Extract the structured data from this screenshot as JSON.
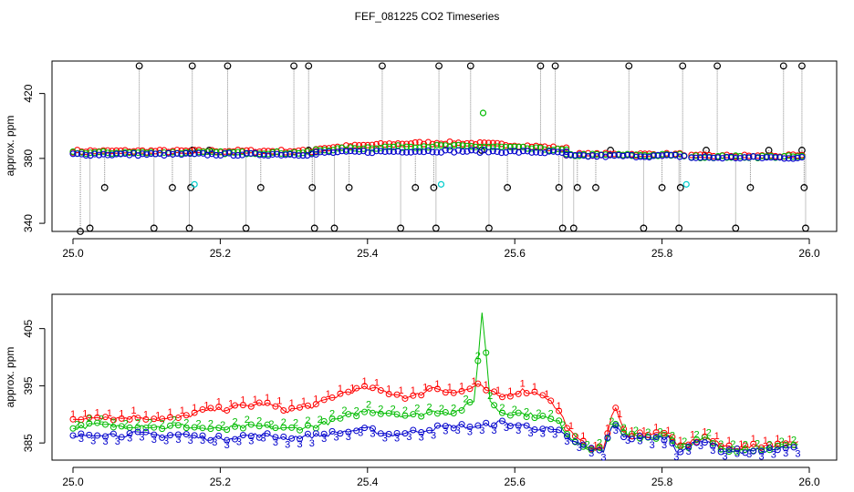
{
  "chart_data": [
    {
      "type": "scatter",
      "title": "FEF_081225  CO2 Timeseries",
      "xlabel": "",
      "ylabel": "approx. ppm",
      "xlim": [
        25.0,
        26.0
      ],
      "ylim": [
        335,
        440
      ],
      "x_ticks": [
        "25.0",
        "25.2",
        "25.4",
        "25.6",
        "25.8",
        "26.0"
      ],
      "y_ticks": [
        "340",
        "380",
        "420"
      ],
      "colors": {
        "series_1": "#ff0000",
        "series_2": "#00bb00",
        "series_3": "#0000cc",
        "outlier": "#000000",
        "flag": "#00cccc",
        "connector": "#888888"
      },
      "series": [
        {
          "name": "1",
          "color": "#ff0000",
          "segments": [
            {
              "x0": 25.0,
              "x1": 25.33,
              "base": 384.5
            },
            {
              "x0": 25.33,
              "x1": 25.67,
              "base": 386.0,
              "bump": 3.5
            },
            {
              "x0": 25.67,
              "x1": 25.83,
              "base": 382.5
            },
            {
              "x0": 25.84,
              "x1": 25.99,
              "base": 381.5
            }
          ]
        },
        {
          "name": "2",
          "color": "#00bb00",
          "segments": [
            {
              "x0": 25.0,
              "x1": 25.33,
              "base": 383.5
            },
            {
              "x0": 25.33,
              "x1": 25.67,
              "base": 385.0,
              "bump": 2.5
            },
            {
              "x0": 25.67,
              "x1": 25.83,
              "base": 382.0
            },
            {
              "x0": 25.84,
              "x1": 25.99,
              "base": 381.0
            }
          ]
        },
        {
          "name": "3",
          "color": "#0000cc",
          "segments": [
            {
              "x0": 25.0,
              "x1": 25.33,
              "base": 382.5
            },
            {
              "x0": 25.33,
              "x1": 25.67,
              "base": 383.5,
              "bump": 1.0
            },
            {
              "x0": 25.67,
              "x1": 25.83,
              "base": 381.5
            },
            {
              "x0": 25.84,
              "x1": 25.99,
              "base": 380.5
            }
          ]
        }
      ],
      "outliers": [
        {
          "x": 25.01,
          "y": 335
        },
        {
          "x": 25.023,
          "y": 337
        },
        {
          "x": 25.043,
          "y": 362
        },
        {
          "x": 25.09,
          "y": 437
        },
        {
          "x": 25.11,
          "y": 337
        },
        {
          "x": 25.135,
          "y": 362
        },
        {
          "x": 25.158,
          "y": 337
        },
        {
          "x": 25.16,
          "y": 362
        },
        {
          "x": 25.162,
          "y": 437
        },
        {
          "x": 25.21,
          "y": 437
        },
        {
          "x": 25.235,
          "y": 337
        },
        {
          "x": 25.255,
          "y": 362
        },
        {
          "x": 25.3,
          "y": 437
        },
        {
          "x": 25.32,
          "y": 437
        },
        {
          "x": 25.325,
          "y": 362
        },
        {
          "x": 25.328,
          "y": 337
        },
        {
          "x": 25.355,
          "y": 337
        },
        {
          "x": 25.375,
          "y": 362
        },
        {
          "x": 25.42,
          "y": 437
        },
        {
          "x": 25.445,
          "y": 337
        },
        {
          "x": 25.465,
          "y": 362
        },
        {
          "x": 25.49,
          "y": 362
        },
        {
          "x": 25.493,
          "y": 337
        },
        {
          "x": 25.497,
          "y": 437
        },
        {
          "x": 25.54,
          "y": 437
        },
        {
          "x": 25.565,
          "y": 337
        },
        {
          "x": 25.59,
          "y": 362
        },
        {
          "x": 25.635,
          "y": 437
        },
        {
          "x": 25.655,
          "y": 437
        },
        {
          "x": 25.66,
          "y": 362
        },
        {
          "x": 25.665,
          "y": 337
        },
        {
          "x": 25.68,
          "y": 337
        },
        {
          "x": 25.685,
          "y": 362
        },
        {
          "x": 25.71,
          "y": 362
        },
        {
          "x": 25.755,
          "y": 437
        },
        {
          "x": 25.775,
          "y": 337
        },
        {
          "x": 25.8,
          "y": 362
        },
        {
          "x": 25.823,
          "y": 337
        },
        {
          "x": 25.825,
          "y": 362
        },
        {
          "x": 25.828,
          "y": 437
        },
        {
          "x": 25.875,
          "y": 437
        },
        {
          "x": 25.9,
          "y": 337
        },
        {
          "x": 25.92,
          "y": 362
        },
        {
          "x": 25.965,
          "y": 437
        },
        {
          "x": 25.99,
          "y": 437
        },
        {
          "x": 25.993,
          "y": 362
        },
        {
          "x": 25.995,
          "y": 337
        },
        {
          "x": 25.162,
          "y": 385
        },
        {
          "x": 25.185,
          "y": 385
        },
        {
          "x": 25.32,
          "y": 385
        },
        {
          "x": 25.555,
          "y": 385
        },
        {
          "x": 25.73,
          "y": 385
        },
        {
          "x": 25.86,
          "y": 385
        },
        {
          "x": 25.945,
          "y": 385
        },
        {
          "x": 25.99,
          "y": 385
        }
      ],
      "flags": [
        {
          "x": 25.165,
          "y": 364,
          "color": "#00cccc"
        },
        {
          "x": 25.5,
          "y": 364,
          "color": "#00cccc"
        },
        {
          "x": 25.833,
          "y": 364,
          "color": "#00cccc"
        },
        {
          "x": 25.557,
          "y": 408,
          "color": "#00bb00"
        }
      ]
    },
    {
      "type": "line",
      "title": "",
      "xlabel": "",
      "ylabel": "approx. ppm",
      "xlim": [
        25.0,
        26.0
      ],
      "ylim": [
        382.0,
        411.0
      ],
      "x_ticks": [
        "25.0",
        "25.2",
        "25.4",
        "25.6",
        "25.8",
        "26.0"
      ],
      "y_ticks": [
        "385",
        "395",
        "405"
      ],
      "series": [
        {
          "name": "1",
          "color": "#ff0000",
          "label": "1",
          "points": [
            [
              25.0,
              388.8
            ],
            [
              25.03,
              389.8
            ],
            [
              25.06,
              389.3
            ],
            [
              25.09,
              389.6
            ],
            [
              25.12,
              389.1
            ],
            [
              25.15,
              389.5
            ],
            [
              25.17,
              390.4
            ],
            [
              25.2,
              390.9
            ],
            [
              25.23,
              391.4
            ],
            [
              25.26,
              391.9
            ],
            [
              25.29,
              390.7
            ],
            [
              25.33,
              391.6
            ],
            [
              25.37,
              393.9
            ],
            [
              25.4,
              394.6
            ],
            [
              25.43,
              393.8
            ],
            [
              25.46,
              392.9
            ],
            [
              25.49,
              394.8
            ],
            [
              25.52,
              393.7
            ],
            [
              25.55,
              395.0
            ],
            [
              25.58,
              393.0
            ],
            [
              25.61,
              394.2
            ],
            [
              25.64,
              393.5
            ],
            [
              25.66,
              390.5
            ],
            [
              25.68,
              386.0
            ],
            [
              25.7,
              384.4
            ],
            [
              25.72,
              383.8
            ],
            [
              25.735,
              391.5
            ],
            [
              25.75,
              386.5
            ],
            [
              25.78,
              386.6
            ],
            [
              25.81,
              386.6
            ],
            [
              25.82,
              384.2
            ],
            [
              25.84,
              385.2
            ],
            [
              25.86,
              386.0
            ],
            [
              25.88,
              384.5
            ],
            [
              25.91,
              384.2
            ],
            [
              25.94,
              384.6
            ],
            [
              25.97,
              385.0
            ],
            [
              25.99,
              385.2
            ]
          ]
        },
        {
          "name": "2",
          "color": "#00bb00",
          "label": "2",
          "points": [
            [
              25.0,
              387.6
            ],
            [
              25.03,
              388.2
            ],
            [
              25.06,
              387.9
            ],
            [
              25.09,
              388.1
            ],
            [
              25.12,
              387.7
            ],
            [
              25.15,
              388.0
            ],
            [
              25.17,
              387.6
            ],
            [
              25.2,
              387.3
            ],
            [
              25.23,
              387.8
            ],
            [
              25.26,
              387.9
            ],
            [
              25.29,
              387.4
            ],
            [
              25.33,
              388.0
            ],
            [
              25.37,
              389.5
            ],
            [
              25.4,
              390.7
            ],
            [
              25.43,
              390.3
            ],
            [
              25.46,
              389.7
            ],
            [
              25.49,
              390.5
            ],
            [
              25.52,
              390.4
            ],
            [
              25.545,
              392.2
            ],
            [
              25.556,
              408.6
            ],
            [
              25.566,
              392.6
            ],
            [
              25.58,
              390.4
            ],
            [
              25.61,
              390.1
            ],
            [
              25.64,
              389.5
            ],
            [
              25.66,
              388.5
            ],
            [
              25.68,
              385.4
            ],
            [
              25.7,
              384.2
            ],
            [
              25.72,
              383.6
            ],
            [
              25.735,
              389.0
            ],
            [
              25.75,
              386.3
            ],
            [
              25.78,
              386.0
            ],
            [
              25.81,
              386.2
            ],
            [
              25.82,
              383.8
            ],
            [
              25.84,
              384.8
            ],
            [
              25.86,
              385.9
            ],
            [
              25.88,
              384.0
            ],
            [
              25.91,
              383.8
            ],
            [
              25.94,
              384.1
            ],
            [
              25.97,
              384.4
            ],
            [
              25.99,
              384.6
            ]
          ]
        },
        {
          "name": "3",
          "color": "#0000cc",
          "label": "3",
          "points": [
            [
              25.0,
              386.0
            ],
            [
              25.03,
              386.7
            ],
            [
              25.06,
              386.4
            ],
            [
              25.09,
              386.6
            ],
            [
              25.12,
              386.3
            ],
            [
              25.15,
              386.5
            ],
            [
              25.17,
              386.0
            ],
            [
              25.2,
              385.8
            ],
            [
              25.23,
              386.2
            ],
            [
              25.26,
              386.4
            ],
            [
              25.29,
              385.9
            ],
            [
              25.33,
              386.3
            ],
            [
              25.37,
              387.0
            ],
            [
              25.4,
              387.4
            ],
            [
              25.43,
              386.5
            ],
            [
              25.46,
              386.9
            ],
            [
              25.49,
              387.6
            ],
            [
              25.52,
              388.0
            ],
            [
              25.55,
              387.8
            ],
            [
              25.58,
              388.6
            ],
            [
              25.61,
              388.0
            ],
            [
              25.64,
              387.5
            ],
            [
              25.66,
              386.9
            ],
            [
              25.68,
              385.2
            ],
            [
              25.7,
              384.1
            ],
            [
              25.72,
              383.5
            ],
            [
              25.735,
              388.7
            ],
            [
              25.75,
              386.0
            ],
            [
              25.78,
              385.8
            ],
            [
              25.81,
              386.0
            ],
            [
              25.82,
              383.6
            ],
            [
              25.84,
              384.6
            ],
            [
              25.86,
              385.6
            ],
            [
              25.88,
              383.8
            ],
            [
              25.91,
              383.5
            ],
            [
              25.94,
              383.8
            ],
            [
              25.97,
              384.0
            ],
            [
              25.99,
              384.2
            ]
          ]
        }
      ]
    }
  ]
}
